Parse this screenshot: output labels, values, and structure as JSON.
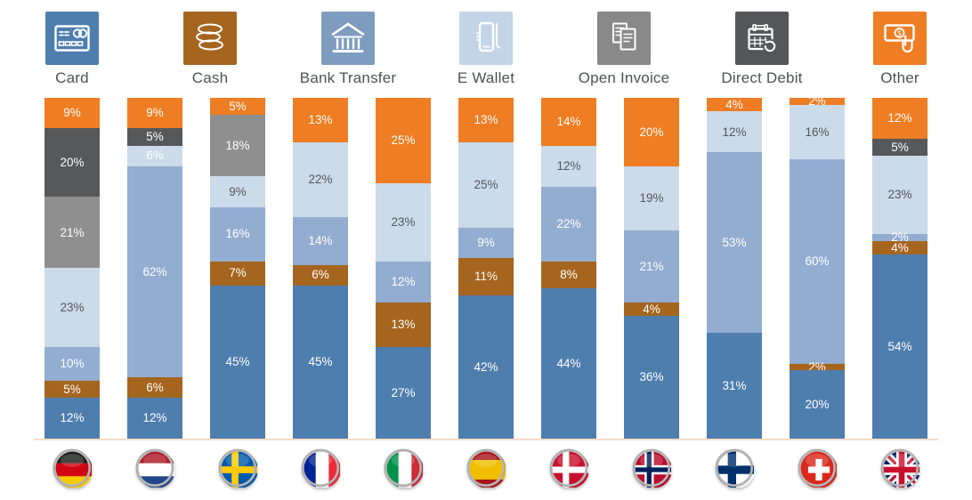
{
  "methods": [
    {
      "key": "card",
      "label": "Card",
      "icon": "card-icon",
      "color": "#4e7eae"
    },
    {
      "key": "cash",
      "label": "Cash",
      "icon": "cash-icon",
      "color": "#a5651f"
    },
    {
      "key": "bank_transfer",
      "label": "Bank Transfer",
      "icon": "bank-transfer-icon",
      "color": "#7e9cc0"
    },
    {
      "key": "e_wallet",
      "label": "E Wallet",
      "icon": "e-wallet-icon",
      "color": "#c3d4e6"
    },
    {
      "key": "open_invoice",
      "label": "Open Invoice",
      "icon": "open-invoice-icon",
      "color": "#898989"
    },
    {
      "key": "direct_debit",
      "label": "Direct Debit",
      "icon": "direct-debit-icon",
      "color": "#55565a"
    },
    {
      "key": "other",
      "label": "Other",
      "icon": "other-icon",
      "color": "#ef7d23"
    }
  ],
  "chart_data": {
    "type": "bar",
    "stacked": true,
    "orientation": "vertical",
    "unit": "%",
    "ylim": [
      0,
      100
    ],
    "grid": false,
    "legend_position": "top-icons",
    "legend": {
      "card": "Card",
      "cash": "Cash",
      "bank_transfer": "Bank Transfer",
      "e_wallet": "E Wallet",
      "open_invoice": "Open Invoice",
      "direct_debit": "Direct Debit",
      "other": "Other"
    },
    "colors": {
      "card": "#4e7eae",
      "cash": "#a5651f",
      "bank_transfer": "#93add1",
      "e_wallet": "#cbdbe9",
      "open_invoice": "#8f8f8f",
      "direct_debit": "#57585a",
      "other": "#ef7d23"
    },
    "segment_order_top_to_bottom": [
      "other",
      "direct_debit",
      "open_invoice",
      "e_wallet",
      "bank_transfer",
      "cash",
      "card"
    ],
    "countries": [
      {
        "name": "Germany",
        "flag": "flag-de",
        "segments": [
          {
            "method": "other",
            "value": 9
          },
          {
            "method": "direct_debit",
            "value": 20
          },
          {
            "method": "open_invoice",
            "value": 21
          },
          {
            "method": "e_wallet",
            "value": 23,
            "text": "dark"
          },
          {
            "method": "bank_transfer",
            "value": 10
          },
          {
            "method": "cash",
            "value": 5
          },
          {
            "method": "card",
            "value": 12
          }
        ]
      },
      {
        "name": "Netherlands",
        "flag": "flag-nl",
        "segments": [
          {
            "method": "other",
            "value": 9
          },
          {
            "method": "direct_debit",
            "value": 5
          },
          {
            "method": "e_wallet",
            "value": 6
          },
          {
            "method": "bank_transfer",
            "value": 62
          },
          {
            "method": "cash",
            "value": 6
          },
          {
            "method": "card",
            "value": 12
          }
        ]
      },
      {
        "name": "Sweden",
        "flag": "flag-se",
        "segments": [
          {
            "method": "other",
            "value": 5
          },
          {
            "method": "open_invoice",
            "value": 18
          },
          {
            "method": "e_wallet",
            "value": 9,
            "text": "dark"
          },
          {
            "method": "bank_transfer",
            "value": 16
          },
          {
            "method": "cash",
            "value": 7
          },
          {
            "method": "card",
            "value": 45
          }
        ]
      },
      {
        "name": "France",
        "flag": "flag-fr",
        "segments": [
          {
            "method": "other",
            "value": 13
          },
          {
            "method": "e_wallet",
            "value": 22,
            "text": "dark"
          },
          {
            "method": "bank_transfer",
            "value": 14
          },
          {
            "method": "cash",
            "value": 6
          },
          {
            "method": "card",
            "value": 45
          }
        ]
      },
      {
        "name": "Italy",
        "flag": "flag-it",
        "segments": [
          {
            "method": "other",
            "value": 25
          },
          {
            "method": "e_wallet",
            "value": 23,
            "text": "dark"
          },
          {
            "method": "bank_transfer",
            "value": 12
          },
          {
            "method": "cash",
            "value": 13
          },
          {
            "method": "card",
            "value": 27
          }
        ]
      },
      {
        "name": "Spain",
        "flag": "flag-es",
        "segments": [
          {
            "method": "other",
            "value": 13
          },
          {
            "method": "e_wallet",
            "value": 25,
            "text": "dark"
          },
          {
            "method": "bank_transfer",
            "value": 9
          },
          {
            "method": "cash",
            "value": 11
          },
          {
            "method": "card",
            "value": 42
          }
        ]
      },
      {
        "name": "Denmark",
        "flag": "flag-dk",
        "segments": [
          {
            "method": "other",
            "value": 14
          },
          {
            "method": "e_wallet",
            "value": 12,
            "text": "dark"
          },
          {
            "method": "bank_transfer",
            "value": 22
          },
          {
            "method": "cash",
            "value": 8
          },
          {
            "method": "card",
            "value": 44
          }
        ]
      },
      {
        "name": "Norway",
        "flag": "flag-no",
        "segments": [
          {
            "method": "other",
            "value": 20
          },
          {
            "method": "e_wallet",
            "value": 19,
            "text": "dark"
          },
          {
            "method": "bank_transfer",
            "value": 21
          },
          {
            "method": "cash",
            "value": 4
          },
          {
            "method": "card",
            "value": 36
          }
        ]
      },
      {
        "name": "Finland",
        "flag": "flag-fi",
        "segments": [
          {
            "method": "other",
            "value": 4
          },
          {
            "method": "e_wallet",
            "value": 12,
            "text": "dark"
          },
          {
            "method": "bank_transfer",
            "value": 53
          },
          {
            "method": "card",
            "value": 31
          }
        ]
      },
      {
        "name": "Switzerland",
        "flag": "flag-ch",
        "segments": [
          {
            "method": "other",
            "value": 2
          },
          {
            "method": "e_wallet",
            "value": 16,
            "text": "dark"
          },
          {
            "method": "bank_transfer",
            "value": 60
          },
          {
            "method": "cash",
            "value": 2
          },
          {
            "method": "card",
            "value": 20
          }
        ]
      },
      {
        "name": "United Kingdom",
        "flag": "flag-gb",
        "segments": [
          {
            "method": "other",
            "value": 12
          },
          {
            "method": "direct_debit",
            "value": 5
          },
          {
            "method": "e_wallet",
            "value": 23,
            "text": "dark"
          },
          {
            "method": "bank_transfer",
            "value": 2
          },
          {
            "method": "cash",
            "value": 4
          },
          {
            "method": "card",
            "value": 54
          }
        ]
      }
    ]
  },
  "baseline_color": "#f4dcc7"
}
